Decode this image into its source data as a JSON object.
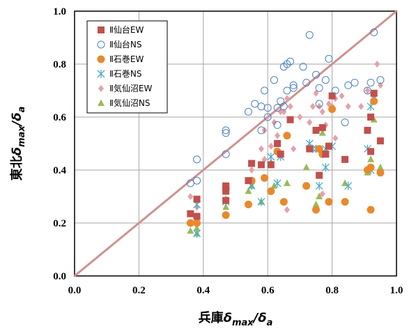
{
  "chart_data": {
    "type": "scatter",
    "xlabel": "兵庫δmax/δa",
    "ylabel": "東北δmax/δa",
    "xlim": [
      0,
      1
    ],
    "ylim": [
      0,
      1
    ],
    "xticks": [
      "0.0",
      "0.2",
      "0.4",
      "0.6",
      "0.8",
      "1.0"
    ],
    "yticks": [
      "0.0",
      "0.2",
      "0.4",
      "0.6",
      "0.8",
      "1.0"
    ],
    "grid": true,
    "legend_position": "top-left",
    "reference_line": {
      "from": [
        0,
        0
      ],
      "to": [
        1,
        1
      ],
      "color": "#d09090"
    },
    "series": [
      {
        "name": "Ⅱ仙台EW",
        "marker": "square",
        "color": "#c0504d",
        "points": [
          [
            0.36,
            0.235
          ],
          [
            0.38,
            0.29
          ],
          [
            0.38,
            0.225
          ],
          [
            0.47,
            0.34
          ],
          [
            0.47,
            0.32
          ],
          [
            0.47,
            0.285
          ],
          [
            0.54,
            0.36
          ],
          [
            0.55,
            0.425
          ],
          [
            0.58,
            0.42
          ],
          [
            0.61,
            0.42
          ],
          [
            0.63,
            0.5
          ],
          [
            0.64,
            0.46
          ],
          [
            0.67,
            0.59
          ],
          [
            0.73,
            0.48
          ],
          [
            0.75,
            0.55
          ],
          [
            0.76,
            0.38
          ],
          [
            0.77,
            0.56
          ],
          [
            0.78,
            0.46
          ],
          [
            0.79,
            0.49
          ],
          [
            0.8,
            0.68
          ],
          [
            0.84,
            0.44
          ],
          [
            0.91,
            0.55
          ],
          [
            0.92,
            0.47
          ],
          [
            0.92,
            0.6
          ],
          [
            0.95,
            0.51
          ],
          [
            0.93,
            0.69
          ]
        ]
      },
      {
        "name": "Ⅱ仙台NS",
        "marker": "circle-open",
        "color": "#4f81bd",
        "points": [
          [
            0.36,
            0.35
          ],
          [
            0.38,
            0.36
          ],
          [
            0.38,
            0.44
          ],
          [
            0.47,
            0.55
          ],
          [
            0.47,
            0.54
          ],
          [
            0.47,
            0.46
          ],
          [
            0.54,
            0.62
          ],
          [
            0.56,
            0.65
          ],
          [
            0.58,
            0.55
          ],
          [
            0.58,
            0.64
          ],
          [
            0.59,
            0.7
          ],
          [
            0.6,
            0.635
          ],
          [
            0.62,
            0.74
          ],
          [
            0.63,
            0.635
          ],
          [
            0.64,
            0.66
          ],
          [
            0.65,
            0.79
          ],
          [
            0.66,
            0.8
          ],
          [
            0.66,
            0.7
          ],
          [
            0.67,
            0.81
          ],
          [
            0.68,
            0.71
          ],
          [
            0.68,
            0.72
          ],
          [
            0.71,
            0.79
          ],
          [
            0.72,
            0.73
          ],
          [
            0.73,
            0.91
          ],
          [
            0.75,
            0.76
          ],
          [
            0.76,
            0.71
          ],
          [
            0.78,
            0.74
          ],
          [
            0.79,
            0.82
          ],
          [
            0.81,
            0.7
          ],
          [
            0.84,
            0.58
          ],
          [
            0.85,
            0.72
          ],
          [
            0.87,
            0.73
          ],
          [
            0.91,
            0.7
          ],
          [
            0.92,
            0.73
          ],
          [
            0.93,
            0.92
          ],
          [
            0.95,
            0.74
          ],
          [
            0.63,
            0.57
          ],
          [
            0.65,
            0.64
          ],
          [
            0.6,
            0.6
          ],
          [
            0.76,
            0.65
          ]
        ]
      },
      {
        "name": "Ⅱ石巻EW",
        "marker": "circle",
        "color": "#e8892b",
        "points": [
          [
            0.36,
            0.2
          ],
          [
            0.38,
            0.2
          ],
          [
            0.47,
            0.23
          ],
          [
            0.47,
            0.33
          ],
          [
            0.54,
            0.27
          ],
          [
            0.55,
            0.36
          ],
          [
            0.59,
            0.37
          ],
          [
            0.61,
            0.32
          ],
          [
            0.63,
            0.47
          ],
          [
            0.65,
            0.28
          ],
          [
            0.66,
            0.53
          ],
          [
            0.72,
            0.34
          ],
          [
            0.75,
            0.25
          ],
          [
            0.76,
            0.48
          ],
          [
            0.77,
            0.46
          ],
          [
            0.8,
            0.63
          ],
          [
            0.79,
            0.28
          ],
          [
            0.84,
            0.28
          ],
          [
            0.91,
            0.4
          ],
          [
            0.92,
            0.25
          ],
          [
            0.92,
            0.41
          ],
          [
            0.93,
            0.66
          ],
          [
            0.95,
            0.39
          ]
        ]
      },
      {
        "name": "Ⅱ石巻NS",
        "marker": "asterisk",
        "color": "#4bacc6",
        "points": [
          [
            0.38,
            0.27
          ],
          [
            0.38,
            0.16
          ],
          [
            0.47,
            0.33
          ],
          [
            0.47,
            0.28
          ],
          [
            0.55,
            0.34
          ],
          [
            0.58,
            0.28
          ],
          [
            0.61,
            0.45
          ],
          [
            0.63,
            0.35
          ],
          [
            0.64,
            0.45
          ],
          [
            0.73,
            0.5
          ],
          [
            0.74,
            0.48
          ],
          [
            0.75,
            0.48
          ],
          [
            0.76,
            0.34
          ],
          [
            0.78,
            0.41
          ],
          [
            0.78,
            0.48
          ],
          [
            0.8,
            0.49
          ],
          [
            0.85,
            0.34
          ],
          [
            0.91,
            0.48
          ],
          [
            0.92,
            0.64
          ],
          [
            0.93,
            0.67
          ],
          [
            0.92,
            0.4
          ]
        ]
      },
      {
        "name": "Ⅱ気仙沼EW",
        "marker": "diamond",
        "color": "#e6a0a8",
        "points": [
          [
            0.36,
            0.3
          ],
          [
            0.38,
            0.26
          ],
          [
            0.47,
            0.34
          ],
          [
            0.55,
            0.4
          ],
          [
            0.58,
            0.48
          ],
          [
            0.59,
            0.55
          ],
          [
            0.59,
            0.44
          ],
          [
            0.61,
            0.49
          ],
          [
            0.62,
            0.58
          ],
          [
            0.63,
            0.53
          ],
          [
            0.64,
            0.62
          ],
          [
            0.65,
            0.62
          ],
          [
            0.66,
            0.25
          ],
          [
            0.66,
            0.67
          ],
          [
            0.67,
            0.64
          ],
          [
            0.68,
            0.48
          ],
          [
            0.7,
            0.6
          ],
          [
            0.73,
            0.58
          ],
          [
            0.74,
            0.64
          ],
          [
            0.75,
            0.69
          ],
          [
            0.76,
            0.64
          ],
          [
            0.77,
            0.62
          ],
          [
            0.78,
            0.57
          ],
          [
            0.79,
            0.65
          ],
          [
            0.8,
            0.64
          ],
          [
            0.81,
            0.67
          ],
          [
            0.83,
            0.68
          ],
          [
            0.85,
            0.64
          ],
          [
            0.89,
            0.64
          ],
          [
            0.91,
            0.7
          ],
          [
            0.93,
            0.68
          ],
          [
            0.94,
            0.8
          ],
          [
            0.95,
            0.72
          ],
          [
            0.77,
            0.31
          ],
          [
            0.81,
            0.52
          ]
        ]
      },
      {
        "name": "Ⅱ気仙沼NS",
        "marker": "triangle",
        "color": "#9bbb59",
        "points": [
          [
            0.36,
            0.17
          ],
          [
            0.38,
            0.16
          ],
          [
            0.38,
            0.18
          ],
          [
            0.47,
            0.29
          ],
          [
            0.47,
            0.26
          ],
          [
            0.54,
            0.32
          ],
          [
            0.55,
            0.34
          ],
          [
            0.58,
            0.28
          ],
          [
            0.61,
            0.43
          ],
          [
            0.62,
            0.34
          ],
          [
            0.66,
            0.35
          ],
          [
            0.72,
            0.41
          ],
          [
            0.75,
            0.27
          ],
          [
            0.76,
            0.3
          ],
          [
            0.77,
            0.54
          ],
          [
            0.84,
            0.35
          ],
          [
            0.91,
            0.39
          ],
          [
            0.92,
            0.44
          ],
          [
            0.93,
            0.59
          ],
          [
            0.95,
            0.41
          ]
        ]
      }
    ]
  }
}
